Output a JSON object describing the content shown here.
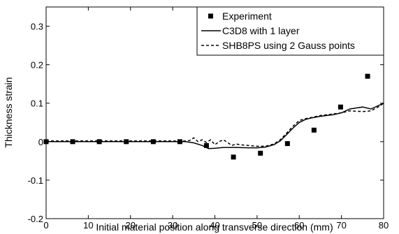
{
  "chart_data": {
    "type": "line",
    "title": "",
    "xlabel": "Initial material position along transverse direction (mm)",
    "ylabel": "Thickness strain",
    "xlim": [
      0,
      80
    ],
    "ylim": [
      -0.2,
      0.35
    ],
    "xticks": [
      0,
      10,
      20,
      30,
      40,
      50,
      60,
      70,
      80
    ],
    "yticks": [
      -0.2,
      -0.1,
      0,
      0.1,
      0.2,
      0.3
    ],
    "xtick_labels": [
      "0",
      "10",
      "20",
      "30",
      "40",
      "50",
      "60",
      "70",
      "80"
    ],
    "ytick_labels": [
      "-0.2",
      "-0.1",
      "0",
      "0.1",
      "0.2",
      "0.3"
    ],
    "grid": false,
    "legend_position": "top-right",
    "series": [
      {
        "name": "Experiment",
        "style": "markers",
        "marker": "square",
        "color": "#000000",
        "x": [
          0,
          6.3,
          12.6,
          19,
          25.4,
          31.7,
          38,
          44.4,
          50.8,
          57.2,
          63.5,
          69.8,
          76.2
        ],
        "y": [
          0,
          0,
          0,
          0,
          0,
          0,
          -0.01,
          -0.04,
          -0.03,
          -0.005,
          0.03,
          0.09,
          0.17
        ]
      },
      {
        "name": "C3D8 with 1 layer",
        "style": "solid",
        "color": "#000000",
        "x": [
          0,
          5,
          10,
          15,
          20,
          25,
          30,
          33,
          35,
          37,
          38.5,
          40,
          42,
          45,
          48,
          50,
          52,
          54,
          55.5,
          57,
          58.5,
          60,
          61.5,
          63,
          65,
          68,
          70,
          72,
          75,
          77,
          79,
          80
        ],
        "y": [
          0,
          0,
          0,
          0,
          0,
          0,
          0,
          0,
          -0.003,
          -0.01,
          -0.018,
          -0.017,
          -0.015,
          -0.015,
          -0.016,
          -0.016,
          -0.014,
          -0.008,
          0.002,
          0.018,
          0.035,
          0.05,
          0.058,
          0.062,
          0.066,
          0.07,
          0.075,
          0.085,
          0.09,
          0.085,
          0.095,
          0.1
        ]
      },
      {
        "name": "SHB8PS using 2 Gauss points",
        "style": "dashed",
        "color": "#000000",
        "x": [
          0,
          5,
          10,
          15,
          20,
          25,
          30,
          32,
          34,
          35,
          36,
          37,
          38,
          39,
          40,
          41,
          42,
          43,
          44,
          45,
          46,
          48,
          50,
          52,
          54,
          55.5,
          57,
          58.5,
          60,
          61.5,
          63,
          65,
          68,
          70,
          72,
          75,
          77,
          79,
          80
        ],
        "y": [
          0.002,
          0.002,
          0.002,
          0.002,
          0.002,
          0.002,
          0.002,
          0.001,
          0.003,
          0.01,
          0.0,
          0.005,
          -0.002,
          0.005,
          -0.008,
          0.0,
          0.005,
          -0.002,
          -0.01,
          -0.006,
          -0.008,
          -0.01,
          -0.012,
          -0.012,
          -0.006,
          0.005,
          0.022,
          0.04,
          0.055,
          0.06,
          0.063,
          0.068,
          0.072,
          0.075,
          0.08,
          0.078,
          0.08,
          0.092,
          0.1
        ]
      }
    ]
  }
}
